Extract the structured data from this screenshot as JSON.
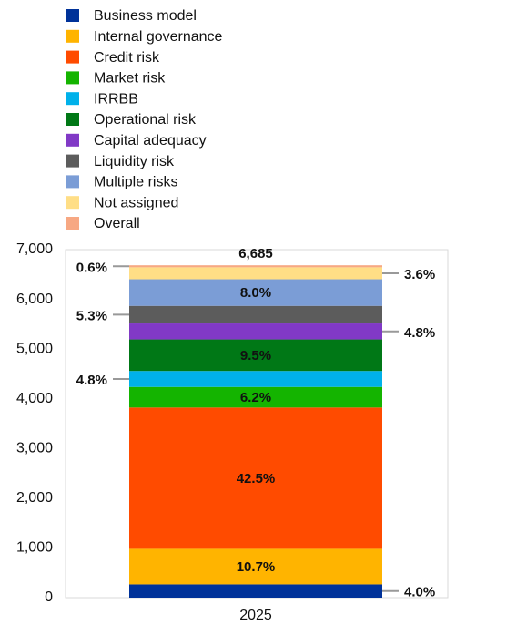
{
  "chart_data": {
    "type": "stacked_bar",
    "categories": [
      "2025"
    ],
    "series": [
      {
        "name": "Business model",
        "color": "#003299",
        "values": [
          267
        ],
        "value_labels": [
          "4.0%"
        ]
      },
      {
        "name": "Internal governance",
        "color": "#ffb400",
        "values": [
          715
        ],
        "value_labels": [
          "10.7%"
        ]
      },
      {
        "name": "Credit risk",
        "color": "#ff4b00",
        "values": [
          2842
        ],
        "value_labels": [
          "42.5%"
        ]
      },
      {
        "name": "Market risk",
        "color": "#14b400",
        "values": [
          414
        ],
        "value_labels": [
          "6.2%"
        ]
      },
      {
        "name": "IRRBB",
        "color": "#00b1ea",
        "values": [
          321
        ],
        "value_labels": [
          "4.8%"
        ]
      },
      {
        "name": "Operational risk",
        "color": "#007816",
        "values": [
          635
        ],
        "value_labels": [
          "9.5%"
        ]
      },
      {
        "name": "Capital adequacy",
        "color": "#8139c6",
        "values": [
          321
        ],
        "value_labels": [
          "4.8%"
        ]
      },
      {
        "name": "Liquidity risk",
        "color": "#5c5c5c",
        "values": [
          354
        ],
        "value_labels": [
          "5.3%"
        ]
      },
      {
        "name": "Multiple risks",
        "color": "#7b9dd6",
        "values": [
          535
        ],
        "value_labels": [
          "8.0%"
        ]
      },
      {
        "name": "Not assigned",
        "color": "#ffde86",
        "values": [
          241
        ],
        "value_labels": [
          "3.6%"
        ]
      },
      {
        "name": "Overall",
        "color": "#f7a883",
        "values": [
          40
        ],
        "value_labels": [
          "0.6%"
        ]
      }
    ],
    "total": {
      "value": 6685,
      "label": "6,685"
    },
    "ylim": [
      0,
      7000
    ],
    "yticks": [
      0,
      {
        "value": 1000,
        "label": "1,000"
      },
      {
        "value": 2000,
        "label": "2,000"
      },
      {
        "value": 3000,
        "label": "3,000"
      },
      {
        "value": 4000,
        "label": "4,000"
      },
      {
        "value": 5000,
        "label": "5,000"
      },
      {
        "value": 6000,
        "label": "6,000"
      },
      {
        "value": 7000,
        "label": "7,000"
      }
    ],
    "legend": "top-left"
  }
}
